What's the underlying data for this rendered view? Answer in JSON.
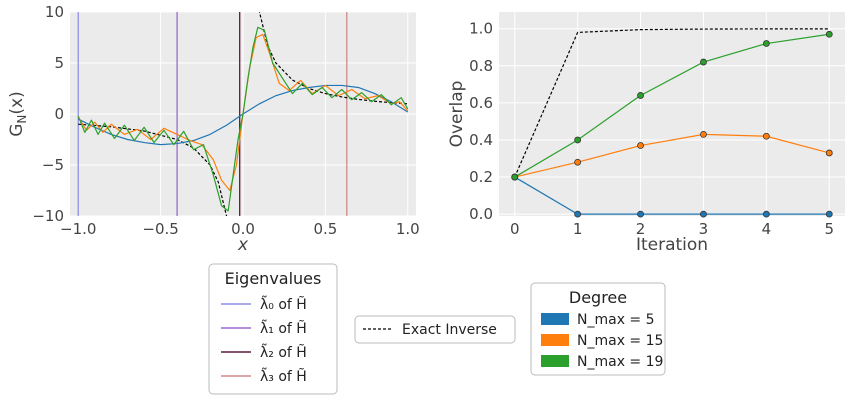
{
  "chart_data": [
    {
      "type": "line",
      "xlabel": "x",
      "ylabel": "G_N(x)",
      "xlim": [
        -1.05,
        1.05
      ],
      "ylim": [
        -10,
        10
      ],
      "xticks": [
        -1.0,
        -0.5,
        0.0,
        0.5,
        1.0
      ],
      "xtick_labels": [
        "−1.0",
        "−0.5",
        "0.0",
        "0.5",
        "1.0"
      ],
      "yticks": [
        -10,
        -5,
        0,
        5,
        10
      ],
      "ytick_labels": [
        "−10",
        "−5",
        "0",
        "5",
        "10"
      ],
      "grid": true,
      "eigenvalues": [
        {
          "x": -1.0,
          "color": "#8f8fe6",
          "label": "λ̃₀ of H̃"
        },
        {
          "x": -0.4,
          "color": "#9b6bd0",
          "label": "λ̃₁ of H̃"
        },
        {
          "x": -0.02,
          "color": "#5a1a3a",
          "label": "λ̃₂ of H̃"
        },
        {
          "x": 0.63,
          "color": "#d08a8a",
          "label": "λ̃₃ of H̃"
        }
      ],
      "series": [
        {
          "name": "Exact Inverse",
          "style": "dashed",
          "color": "#000000",
          "x": [
            -1.0,
            -0.8,
            -0.6,
            -0.4,
            -0.3,
            -0.2,
            -0.15,
            -0.1,
            -0.07,
            -0.05,
            0.05,
            0.07,
            0.1,
            0.15,
            0.2,
            0.3,
            0.4,
            0.5,
            0.6,
            0.7,
            0.8,
            0.9,
            1.0
          ],
          "y": [
            -1.0,
            -1.25,
            -1.67,
            -2.5,
            -3.33,
            -5.0,
            -6.67,
            -10.0,
            -14.3,
            -20.0,
            20.0,
            14.3,
            10.0,
            6.67,
            5.0,
            3.33,
            2.5,
            2.0,
            1.67,
            1.43,
            1.25,
            1.11,
            1.0
          ]
        },
        {
          "name": "N_max = 5",
          "color": "#1f77b4",
          "x": [
            -1.0,
            -0.9,
            -0.8,
            -0.7,
            -0.6,
            -0.5,
            -0.4,
            -0.3,
            -0.2,
            -0.1,
            0.0,
            0.1,
            0.2,
            0.3,
            0.4,
            0.5,
            0.6,
            0.7,
            0.8,
            0.9,
            1.0
          ],
          "y": [
            -0.5,
            -1.3,
            -2.0,
            -2.5,
            -2.8,
            -3.0,
            -2.9,
            -2.6,
            -2.0,
            -1.1,
            0.0,
            1.0,
            1.8,
            2.3,
            2.6,
            2.8,
            2.8,
            2.6,
            2.0,
            1.2,
            0.2
          ]
        },
        {
          "name": "N_max = 15",
          "color": "#ff7f0e",
          "x": [
            -1.0,
            -0.95,
            -0.9,
            -0.85,
            -0.8,
            -0.72,
            -0.64,
            -0.56,
            -0.48,
            -0.4,
            -0.32,
            -0.25,
            -0.18,
            -0.13,
            -0.08,
            -0.04,
            0.0,
            0.04,
            0.08,
            0.12,
            0.16,
            0.22,
            0.28,
            0.35,
            0.42,
            0.5,
            0.58,
            0.66,
            0.74,
            0.82,
            0.9,
            0.95,
            1.0
          ],
          "y": [
            -0.3,
            -1.6,
            -0.8,
            -1.8,
            -1.0,
            -2.0,
            -1.5,
            -2.5,
            -1.4,
            -2.0,
            -2.6,
            -3.0,
            -4.5,
            -6.5,
            -7.5,
            -5.0,
            0.0,
            4.5,
            7.5,
            7.8,
            6.0,
            3.0,
            2.3,
            3.3,
            2.0,
            2.8,
            1.8,
            2.4,
            1.5,
            1.8,
            1.0,
            1.2,
            0.3
          ]
        },
        {
          "name": "N_max = 19",
          "color": "#2ca02c",
          "x": [
            -1.0,
            -0.96,
            -0.92,
            -0.88,
            -0.84,
            -0.78,
            -0.72,
            -0.66,
            -0.6,
            -0.54,
            -0.48,
            -0.42,
            -0.36,
            -0.3,
            -0.24,
            -0.18,
            -0.13,
            -0.09,
            -0.06,
            -0.03,
            0.0,
            0.03,
            0.06,
            0.09,
            0.13,
            0.18,
            0.24,
            0.3,
            0.36,
            0.42,
            0.48,
            0.54,
            0.6,
            0.66,
            0.72,
            0.78,
            0.84,
            0.9,
            0.96,
            1.0
          ],
          "y": [
            -0.2,
            -1.8,
            -0.6,
            -2.0,
            -0.9,
            -2.4,
            -1.1,
            -2.6,
            -1.3,
            -2.8,
            -1.6,
            -3.0,
            -1.7,
            -3.5,
            -3.0,
            -6.0,
            -9.0,
            -9.5,
            -6.0,
            -2.5,
            0.0,
            3.5,
            6.5,
            8.5,
            8.2,
            5.0,
            3.5,
            2.0,
            3.0,
            1.9,
            2.6,
            1.6,
            2.4,
            1.4,
            2.1,
            1.2,
            1.9,
            0.9,
            1.6,
            0.5
          ]
        }
      ]
    },
    {
      "type": "line",
      "xlabel": "Iteration",
      "ylabel": "Overlap",
      "xlim": [
        -0.25,
        5.25
      ],
      "ylim": [
        -0.01,
        1.09
      ],
      "xticks": [
        0,
        1,
        2,
        3,
        4,
        5
      ],
      "xtick_labels": [
        "0",
        "1",
        "2",
        "3",
        "4",
        "5"
      ],
      "yticks": [
        0.0,
        0.2,
        0.4,
        0.6,
        0.8,
        1.0
      ],
      "ytick_labels": [
        "0.0",
        "0.2",
        "0.4",
        "0.6",
        "0.8",
        "1.0"
      ],
      "grid": true,
      "x": [
        0,
        1,
        2,
        3,
        4,
        5
      ],
      "series": [
        {
          "name": "Exact Inverse",
          "style": "dashed",
          "color": "#000000",
          "markers": false,
          "values": [
            0.2,
            0.98,
            0.995,
            0.998,
            0.999,
            0.999
          ]
        },
        {
          "name": "N_max = 5",
          "color": "#1f77b4",
          "markers": true,
          "values": [
            0.2,
            0.0,
            0.0,
            0.0,
            0.0,
            0.0
          ]
        },
        {
          "name": "N_max = 15",
          "color": "#ff7f0e",
          "markers": true,
          "values": [
            0.2,
            0.28,
            0.37,
            0.43,
            0.42,
            0.33
          ]
        },
        {
          "name": "N_max = 19",
          "color": "#2ca02c",
          "markers": true,
          "values": [
            0.2,
            0.4,
            0.64,
            0.82,
            0.92,
            0.97
          ]
        }
      ]
    }
  ],
  "legends": {
    "eigenvalues": {
      "title": "Eigenvalues",
      "entries": [
        "λ̃₀ of H̃",
        "λ̃₁ of H̃",
        "λ̃₂ of H̃",
        "λ̃₃ of H̃"
      ],
      "colors": [
        "#8f8fe6",
        "#9b6bd0",
        "#5a1a3a",
        "#d08a8a"
      ]
    },
    "exact": {
      "label": "Exact Inverse"
    },
    "degree": {
      "title": "Degree",
      "entries": [
        "N_max = 5",
        "N_max = 15",
        "N_max = 19"
      ],
      "colors": [
        "#1f77b4",
        "#ff7f0e",
        "#2ca02c"
      ]
    }
  }
}
